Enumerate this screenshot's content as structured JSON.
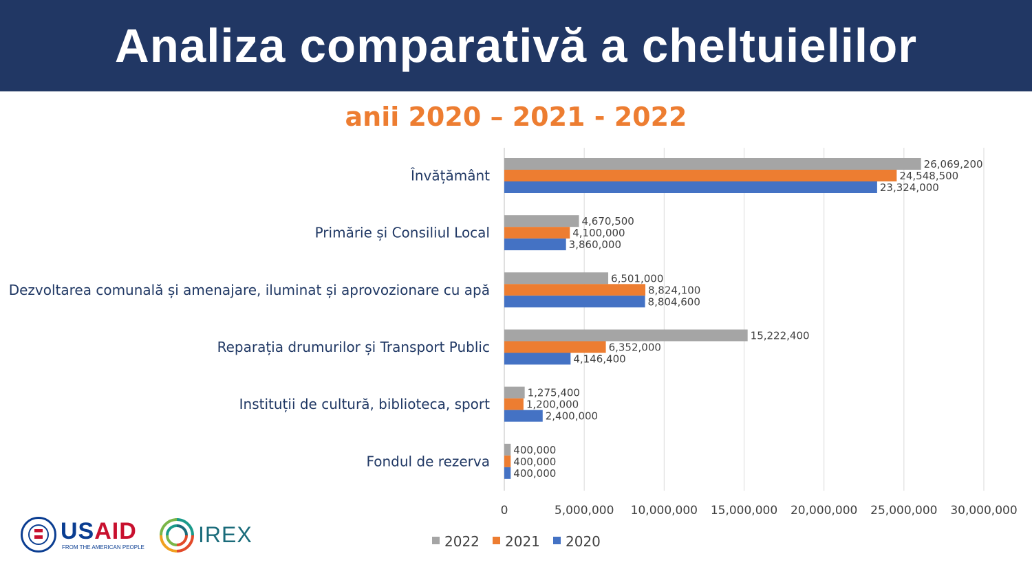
{
  "header": {
    "title": "Analiza comparativă a cheltuielilor"
  },
  "subtitle": "anii 2020 – 2021 - 2022",
  "colors": {
    "header_bg": "#213764",
    "subtitle": "#ed7d31",
    "s2022": "#a5a5a5",
    "s2021": "#ed7d31",
    "s2020": "#4472c4"
  },
  "chart_data": {
    "type": "bar",
    "orientation": "horizontal",
    "categories": [
      "Învățământ",
      "Primărie și Consiliul Local",
      "Dezvoltarea comunală și amenajare, iluminat și aprovozionare cu apă",
      "Reparația drumurilor și Transport Public",
      "Instituții de cultură, biblioteca, sport",
      "Fondul de rezerva"
    ],
    "series": [
      {
        "name": "2022",
        "color": "#a5a5a5",
        "values": [
          26069200,
          4670500,
          6501000,
          15222400,
          1275400,
          400000
        ],
        "labels": [
          "26,069,200",
          "4,670,500",
          "6,501,000",
          "15,222,400",
          "1,275,400",
          "400,000"
        ]
      },
      {
        "name": "2021",
        "color": "#ed7d31",
        "values": [
          24548500,
          4100000,
          8824100,
          6352000,
          1200000,
          400000
        ],
        "labels": [
          "24,548,500",
          "4,100,000",
          "8,824,100",
          "6,352,000",
          "1,200,000",
          "400,000"
        ]
      },
      {
        "name": "2020",
        "color": "#4472c4",
        "values": [
          23324000,
          3860000,
          8804600,
          4146400,
          2400000,
          400000
        ],
        "labels": [
          "23,324,000",
          "3,860,000",
          "8,804,600",
          "4,146,400",
          "2,400,000",
          "400,000"
        ]
      }
    ],
    "xlim": [
      0,
      30000000
    ],
    "xticks": [
      0,
      5000000,
      10000000,
      15000000,
      20000000,
      25000000,
      30000000
    ],
    "xtick_labels": [
      "0",
      "5,000,000",
      "10,000,000",
      "15,000,000",
      "20,000,000",
      "25,000,000",
      "30,000,000"
    ],
    "grid": "vertical",
    "legend_position": "bottom"
  },
  "logos": {
    "usaid": {
      "us": "US",
      "aid": "AID",
      "tagline": "FROM THE AMERICAN PEOPLE"
    },
    "irex": "IREX"
  }
}
